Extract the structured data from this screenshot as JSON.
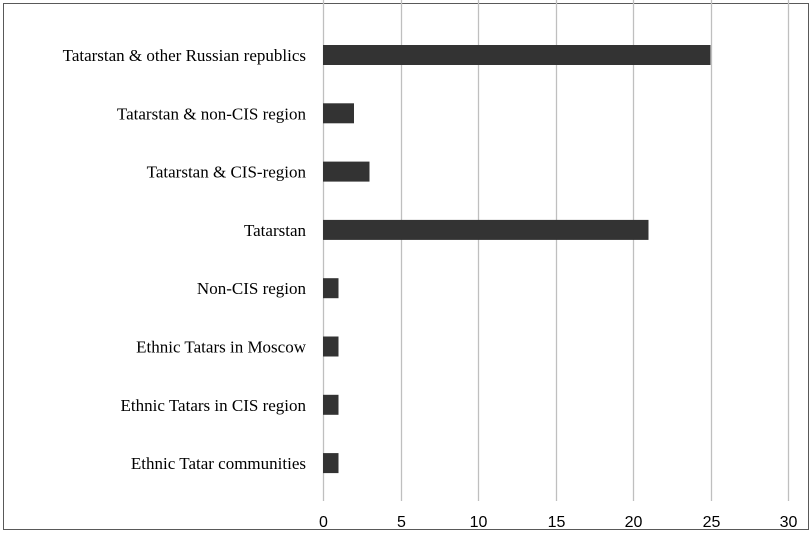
{
  "chart_data": {
    "type": "bar",
    "orientation": "horizontal",
    "title": "",
    "xlabel": "",
    "ylabel": "",
    "categories": [
      "Tatarstan & other Russian republics",
      "Tatarstan & non-CIS region",
      "Tatarstan & CIS-region",
      "Tatarstan",
      "Non-CIS region",
      "Ethnic Tatars in Moscow",
      "Ethnic Tatars in CIS region",
      "Ethnic Tatar communities"
    ],
    "values": [
      25,
      2,
      3,
      21,
      1,
      1,
      1,
      1
    ],
    "xlim": [
      0,
      30
    ],
    "xticks": [
      0,
      5,
      10,
      15,
      20,
      25,
      30
    ],
    "xtick_labels": [
      "0",
      "5",
      "10",
      "15",
      "20",
      "25",
      "30"
    ],
    "grid": "vertical",
    "legend": "none",
    "colors": {
      "bar": "#333333",
      "grid": "#bfbfbf",
      "text": "#000000",
      "frame": "#595959"
    }
  }
}
